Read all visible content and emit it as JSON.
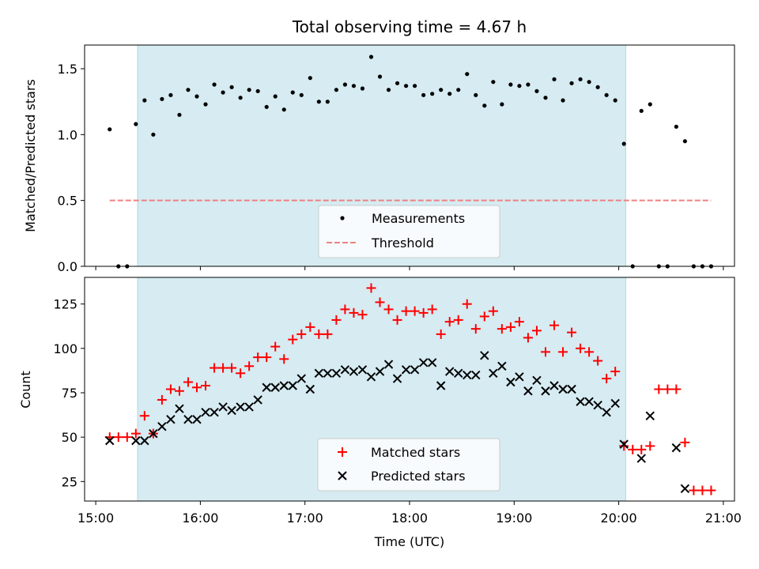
{
  "chart_data": [
    {
      "type": "scatter",
      "title": "Total observing time = 4.67 h",
      "xlabel": "",
      "ylabel": "Matched/Predicted stars",
      "xlim": [
        "15:00",
        "21:00"
      ],
      "ylim": [
        0,
        1.68
      ],
      "yticks": [
        "0.0",
        "0.5",
        "1.0",
        "1.5"
      ],
      "shaded_interval": [
        "15:24",
        "20:04"
      ],
      "legend_position": "lower center",
      "series": [
        {
          "name": "Measurements",
          "color": "#000000",
          "marker": "dot",
          "x": [
            "15:08",
            "15:13",
            "15:18",
            "15:23",
            "15:28",
            "15:33",
            "15:38",
            "15:43",
            "15:48",
            "15:53",
            "15:58",
            "16:03",
            "16:08",
            "16:13",
            "16:18",
            "16:23",
            "16:28",
            "16:33",
            "16:38",
            "16:43",
            "16:48",
            "16:53",
            "16:58",
            "17:03",
            "17:08",
            "17:13",
            "17:18",
            "17:23",
            "17:28",
            "17:33",
            "17:38",
            "17:43",
            "17:48",
            "17:53",
            "17:58",
            "18:03",
            "18:08",
            "18:13",
            "18:18",
            "18:23",
            "18:28",
            "18:33",
            "18:38",
            "18:43",
            "18:48",
            "18:53",
            "18:58",
            "19:03",
            "19:08",
            "19:13",
            "19:18",
            "19:23",
            "19:28",
            "19:33",
            "19:38",
            "19:43",
            "19:48",
            "19:53",
            "19:58",
            "20:03",
            "20:08",
            "20:13",
            "20:18",
            "20:23",
            "20:28",
            "20:33",
            "20:38",
            "20:43",
            "20:48",
            "20:53"
          ],
          "y": [
            1.04,
            0.0,
            0.0,
            1.08,
            1.26,
            1.0,
            1.27,
            1.3,
            1.15,
            1.34,
            1.29,
            1.23,
            1.38,
            1.32,
            1.36,
            1.28,
            1.34,
            1.33,
            1.21,
            1.29,
            1.19,
            1.32,
            1.3,
            1.43,
            1.25,
            1.25,
            1.34,
            1.38,
            1.37,
            1.35,
            1.59,
            1.44,
            1.34,
            1.39,
            1.37,
            1.37,
            1.3,
            1.31,
            1.34,
            1.31,
            1.34,
            1.46,
            1.3,
            1.22,
            1.4,
            1.23,
            1.38,
            1.37,
            1.38,
            1.33,
            1.28,
            1.42,
            1.26,
            1.39,
            1.42,
            1.4,
            1.36,
            1.3,
            1.26,
            0.93,
            0.0,
            1.18,
            1.23,
            0.0,
            0.0,
            1.06,
            0.95,
            0.0,
            0.0,
            0.0
          ]
        },
        {
          "name": "Threshold",
          "color": "#f08080",
          "style": "dashed",
          "x": [
            "15:08",
            "20:53"
          ],
          "y": [
            0.5,
            0.5
          ]
        }
      ]
    },
    {
      "type": "scatter",
      "title": "",
      "xlabel": "Time (UTC)",
      "ylabel": "Count",
      "xlim": [
        "15:00",
        "21:00"
      ],
      "ylim": [
        14,
        140
      ],
      "xticks": [
        "15:00",
        "16:00",
        "17:00",
        "18:00",
        "19:00",
        "20:00",
        "21:00"
      ],
      "yticks": [
        "25",
        "50",
        "75",
        "100",
        "125"
      ],
      "shaded_interval": [
        "15:24",
        "20:04"
      ],
      "legend_position": "lower center",
      "series": [
        {
          "name": "Matched stars",
          "color": "#ff0000",
          "marker": "plus",
          "x": [
            "15:08",
            "15:13",
            "15:18",
            "15:23",
            "15:28",
            "15:33",
            "15:38",
            "15:43",
            "15:48",
            "15:53",
            "15:58",
            "16:03",
            "16:08",
            "16:13",
            "16:18",
            "16:23",
            "16:28",
            "16:33",
            "16:38",
            "16:43",
            "16:48",
            "16:53",
            "16:58",
            "17:03",
            "17:08",
            "17:13",
            "17:18",
            "17:23",
            "17:28",
            "17:33",
            "17:38",
            "17:43",
            "17:48",
            "17:53",
            "17:58",
            "18:03",
            "18:08",
            "18:13",
            "18:18",
            "18:23",
            "18:28",
            "18:33",
            "18:38",
            "18:43",
            "18:48",
            "18:53",
            "18:58",
            "19:03",
            "19:08",
            "19:13",
            "19:18",
            "19:23",
            "19:28",
            "19:33",
            "19:38",
            "19:43",
            "19:48",
            "19:53",
            "19:58",
            "20:03",
            "20:08",
            "20:13",
            "20:18",
            "20:23",
            "20:28",
            "20:33",
            "20:38",
            "20:43",
            "20:48",
            "20:53"
          ],
          "y": [
            50,
            50,
            50,
            52,
            62,
            52,
            71,
            77,
            76,
            81,
            78,
            79,
            89,
            89,
            89,
            86,
            90,
            95,
            95,
            101,
            94,
            105,
            108,
            112,
            108,
            108,
            116,
            122,
            120,
            119,
            134,
            126,
            122,
            116,
            121,
            121,
            120,
            122,
            108,
            115,
            116,
            125,
            111,
            118,
            121,
            111,
            112,
            115,
            106,
            110,
            98,
            113,
            98,
            109,
            100,
            98,
            93,
            83,
            87,
            45,
            43,
            43,
            45,
            77,
            77,
            77,
            47,
            20,
            20,
            20
          ]
        },
        {
          "name": "Predicted stars",
          "color": "#000000",
          "marker": "cross",
          "x": [
            "15:08",
            "15:23",
            "15:28",
            "15:33",
            "15:38",
            "15:43",
            "15:48",
            "15:53",
            "15:58",
            "16:03",
            "16:08",
            "16:13",
            "16:18",
            "16:23",
            "16:28",
            "16:33",
            "16:38",
            "16:43",
            "16:48",
            "16:53",
            "16:58",
            "17:03",
            "17:08",
            "17:13",
            "17:18",
            "17:23",
            "17:28",
            "17:33",
            "17:38",
            "17:43",
            "17:48",
            "17:53",
            "17:58",
            "18:03",
            "18:08",
            "18:13",
            "18:18",
            "18:23",
            "18:28",
            "18:33",
            "18:38",
            "18:43",
            "18:48",
            "18:53",
            "18:58",
            "19:03",
            "19:08",
            "19:13",
            "19:18",
            "19:23",
            "19:28",
            "19:33",
            "19:38",
            "19:43",
            "19:48",
            "19:53",
            "19:58",
            "20:03",
            "20:13",
            "20:18",
            "20:33",
            "20:38"
          ],
          "y": [
            48,
            48,
            48,
            52,
            56,
            60,
            66,
            60,
            60,
            64,
            64,
            67,
            65,
            67,
            67,
            71,
            78,
            78,
            79,
            79,
            83,
            77,
            86,
            86,
            86,
            88,
            87,
            88,
            84,
            87,
            91,
            83,
            88,
            88,
            92,
            92,
            79,
            87,
            86,
            85,
            85,
            96,
            86,
            90,
            81,
            84,
            76,
            82,
            76,
            79,
            77,
            77,
            70,
            70,
            68,
            64,
            69,
            46,
            38,
            62,
            44,
            21
          ]
        }
      ]
    }
  ]
}
